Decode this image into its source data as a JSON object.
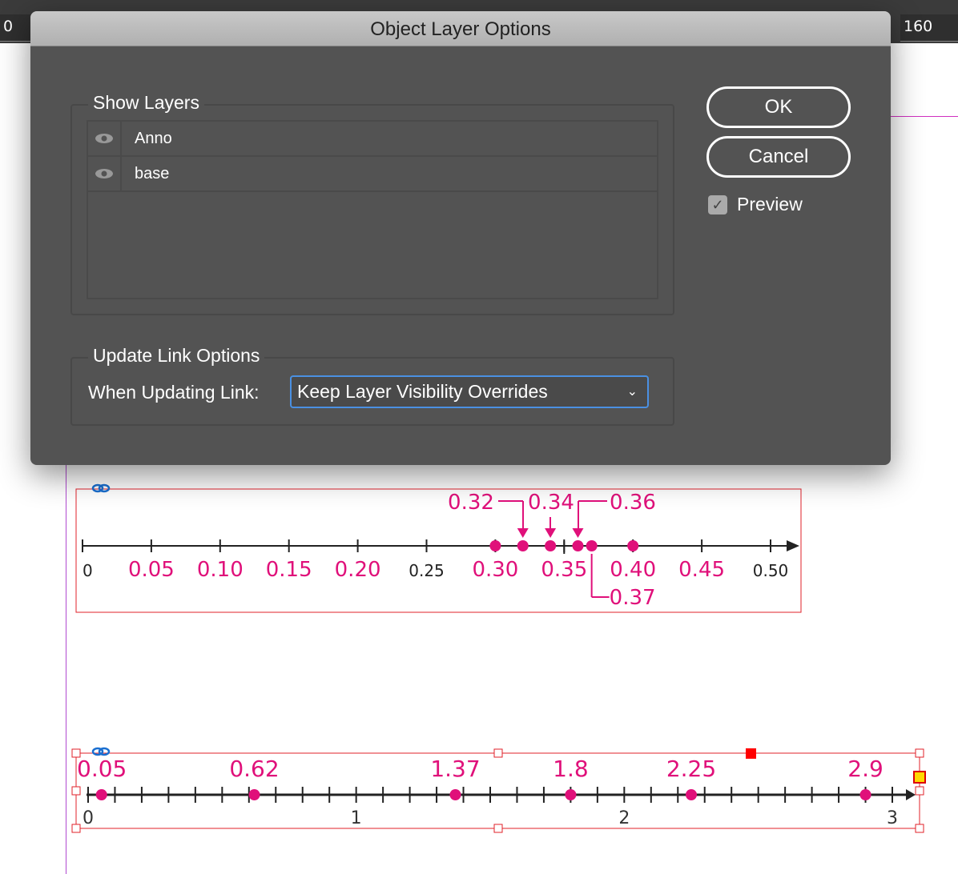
{
  "rulers": {
    "left": "0",
    "right": "160"
  },
  "dialog": {
    "title": "Object Layer Options",
    "show_layers": {
      "label": "Show Layers",
      "layers": [
        {
          "name": "Anno",
          "visible": true
        },
        {
          "name": "base",
          "visible": true
        }
      ]
    },
    "update_link": {
      "label": "Update Link Options",
      "field_label": "When Updating Link:",
      "selected": "Keep Layer Visibility Overrides"
    },
    "ok": "OK",
    "cancel": "Cancel",
    "preview": {
      "label": "Preview",
      "checked": true
    }
  },
  "colors": {
    "accent": "#e0107a",
    "frame": "#e0202a",
    "link": "#1a6fd0"
  },
  "chart_data": [
    {
      "type": "number-line",
      "xlim": [
        0,
        0.5
      ],
      "tick_step": 0.05,
      "tick_labels": [
        {
          "v": 0,
          "t": "0",
          "c": "black"
        },
        {
          "v": 0.05,
          "t": "0.05",
          "c": "pink"
        },
        {
          "v": 0.1,
          "t": "0.10",
          "c": "pink"
        },
        {
          "v": 0.15,
          "t": "0.15",
          "c": "pink"
        },
        {
          "v": 0.2,
          "t": "0.20",
          "c": "pink"
        },
        {
          "v": 0.25,
          "t": "0.25",
          "c": "black"
        },
        {
          "v": 0.3,
          "t": "0.30",
          "c": "pink"
        },
        {
          "v": 0.35,
          "t": "0.35",
          "c": "pink"
        },
        {
          "v": 0.4,
          "t": "0.40",
          "c": "pink"
        },
        {
          "v": 0.45,
          "t": "0.45",
          "c": "pink"
        },
        {
          "v": 0.5,
          "t": "0.50",
          "c": "black"
        }
      ],
      "points": [
        0.3,
        0.32,
        0.34,
        0.36,
        0.37,
        0.4
      ],
      "callouts": [
        {
          "v": 0.32,
          "t": "0.32",
          "pos": "top"
        },
        {
          "v": 0.34,
          "t": "0.34",
          "pos": "top"
        },
        {
          "v": 0.36,
          "t": "0.36",
          "pos": "top"
        },
        {
          "v": 0.37,
          "t": "0.37",
          "pos": "bottom"
        }
      ]
    },
    {
      "type": "number-line",
      "xlim": [
        0,
        3
      ],
      "tick_step": 0.1,
      "tick_labels": [
        {
          "v": 0,
          "t": "0"
        },
        {
          "v": 1,
          "t": "1"
        },
        {
          "v": 2,
          "t": "2"
        },
        {
          "v": 3,
          "t": "3"
        }
      ],
      "points": [
        0.05,
        0.62,
        1.37,
        1.8,
        2.25,
        2.9
      ],
      "point_labels": [
        "0.05",
        "0.62",
        "1.37",
        "1.8",
        "2.25",
        "2.9"
      ]
    }
  ]
}
